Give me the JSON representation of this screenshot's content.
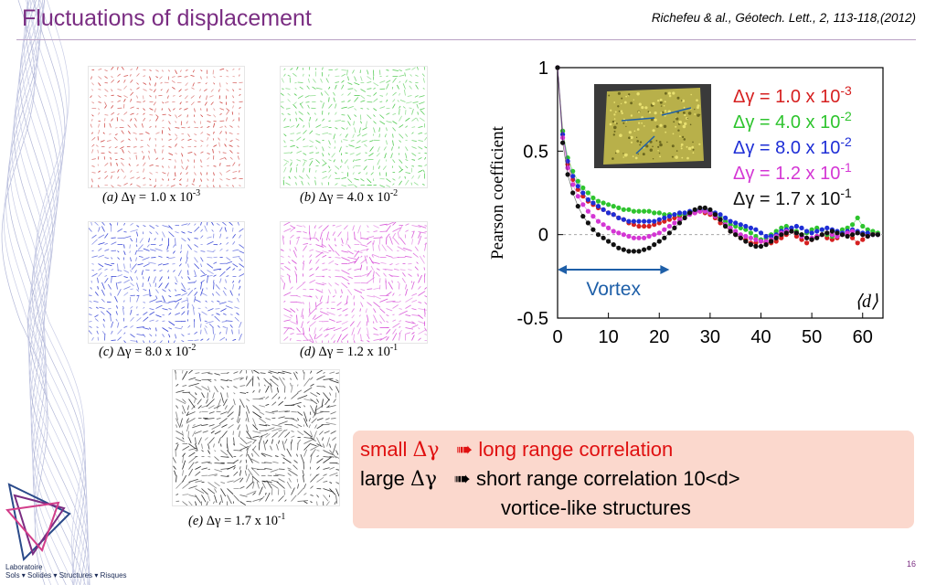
{
  "slide": {
    "title": "Fluctuations of displacement",
    "citation": "Richefeu & al., Géotech. Lett., 2, 113-118,(2012)",
    "page_number": "16",
    "lab_line1": "Laboratoire",
    "lab_line2": "Sols ▾ Solides ▾ Structures ▾ Risques"
  },
  "panels": [
    {
      "label": "(a)",
      "value": "1.0 x 10",
      "exp": "-3",
      "color": "#c9302c"
    },
    {
      "label": "(b)",
      "value": "4.0 x 10",
      "exp": "-2",
      "color": "#3cc43c"
    },
    {
      "label": "(c)",
      "value": "8.0 x 10",
      "exp": "-2",
      "color": "#1f2fd0"
    },
    {
      "label": "(d)",
      "value": "1.2 x 10",
      "exp": "-1",
      "color": "#d23dd2"
    },
    {
      "label": "(e)",
      "value": "1.7 x 10",
      "exp": "-1",
      "color": "#111111"
    }
  ],
  "delta_gamma": "Δγ = ",
  "chart_data": {
    "type": "scatter",
    "ylabel": "Pearson coefficient",
    "xlabel": "⟨d⟩",
    "xlim": [
      0,
      64
    ],
    "ylim": [
      -0.5,
      1
    ],
    "xticks": [
      "0",
      "10",
      "20",
      "30",
      "40",
      "50",
      "60"
    ],
    "yticks": [
      "1",
      "0.5",
      "0",
      "-0.5"
    ],
    "annotation": "Vortex",
    "annotation_range": [
      0,
      22
    ],
    "zero_line": true,
    "legend_position": "top-right",
    "series": [
      {
        "name": "Δγ = 1.0 x 10",
        "exp": "-3",
        "color": "#d62020",
        "x": [
          0,
          1,
          2,
          3,
          4,
          5,
          6,
          7,
          8,
          9,
          10,
          11,
          12,
          13,
          14,
          15,
          16,
          17,
          18,
          19,
          20,
          21,
          22,
          23,
          24,
          25,
          26,
          27,
          28,
          29,
          30,
          31,
          32,
          33,
          34,
          35,
          36,
          37,
          38,
          39,
          40,
          41,
          42,
          43,
          44,
          45,
          46,
          47,
          48,
          49,
          50,
          51,
          52,
          53,
          54,
          55,
          56,
          57,
          58,
          59,
          60,
          61,
          62,
          63
        ],
        "y": [
          1.0,
          0.62,
          0.42,
          0.33,
          0.27,
          0.23,
          0.2,
          0.18,
          0.16,
          0.15,
          0.13,
          0.12,
          0.1,
          0.09,
          0.07,
          0.06,
          0.05,
          0.05,
          0.05,
          0.06,
          0.07,
          0.08,
          0.09,
          0.1,
          0.11,
          0.12,
          0.13,
          0.13,
          0.14,
          0.13,
          0.12,
          0.1,
          0.07,
          0.05,
          0.02,
          0.0,
          -0.02,
          -0.03,
          -0.05,
          -0.05,
          -0.04,
          -0.05,
          -0.05,
          -0.04,
          -0.02,
          0.0,
          0.02,
          -0.01,
          -0.03,
          -0.05,
          -0.03,
          -0.01,
          0.0,
          -0.02,
          -0.03,
          -0.02,
          0.0,
          0.01,
          -0.02,
          -0.05,
          -0.03,
          0.0,
          0.01,
          0.0
        ]
      },
      {
        "name": "Δγ = 4.0 x 10",
        "exp": "-2",
        "color": "#2ec42e",
        "x": [
          0,
          1,
          2,
          3,
          4,
          5,
          6,
          7,
          8,
          9,
          10,
          11,
          12,
          13,
          14,
          15,
          16,
          17,
          18,
          19,
          20,
          21,
          22,
          23,
          24,
          25,
          26,
          27,
          28,
          29,
          30,
          31,
          32,
          33,
          34,
          35,
          36,
          37,
          38,
          39,
          40,
          41,
          42,
          43,
          44,
          45,
          46,
          47,
          48,
          49,
          50,
          51,
          52,
          53,
          54,
          55,
          56,
          57,
          58,
          59,
          60,
          61,
          62,
          63
        ],
        "y": [
          1.0,
          0.62,
          0.46,
          0.38,
          0.32,
          0.28,
          0.25,
          0.22,
          0.2,
          0.19,
          0.18,
          0.17,
          0.16,
          0.15,
          0.15,
          0.14,
          0.14,
          0.14,
          0.14,
          0.13,
          0.13,
          0.12,
          0.12,
          0.12,
          0.12,
          0.12,
          0.13,
          0.14,
          0.15,
          0.14,
          0.13,
          0.12,
          0.1,
          0.08,
          0.06,
          0.05,
          0.04,
          0.03,
          0.01,
          -0.01,
          -0.03,
          -0.02,
          0.0,
          0.02,
          0.04,
          0.05,
          0.04,
          0.02,
          0.0,
          0.01,
          0.03,
          0.04,
          0.03,
          0.0,
          -0.01,
          0.01,
          0.03,
          0.04,
          0.06,
          0.1,
          0.05,
          0.03,
          0.02,
          0.01
        ]
      },
      {
        "name": "Δγ = 8.0 x 10",
        "exp": "-2",
        "color": "#1e2ed6",
        "x": [
          0,
          1,
          2,
          3,
          4,
          5,
          6,
          7,
          8,
          9,
          10,
          11,
          12,
          13,
          14,
          15,
          16,
          17,
          18,
          19,
          20,
          21,
          22,
          23,
          24,
          25,
          26,
          27,
          28,
          29,
          30,
          31,
          32,
          33,
          34,
          35,
          36,
          37,
          38,
          39,
          40,
          41,
          42,
          43,
          44,
          45,
          46,
          47,
          48,
          49,
          50,
          51,
          52,
          53,
          54,
          55,
          56,
          57,
          58,
          59,
          60,
          61,
          62,
          63
        ],
        "y": [
          1.0,
          0.6,
          0.44,
          0.35,
          0.29,
          0.25,
          0.21,
          0.19,
          0.17,
          0.15,
          0.13,
          0.12,
          0.1,
          0.09,
          0.08,
          0.08,
          0.08,
          0.08,
          0.08,
          0.08,
          0.09,
          0.1,
          0.11,
          0.12,
          0.13,
          0.13,
          0.14,
          0.14,
          0.15,
          0.15,
          0.14,
          0.13,
          0.12,
          0.1,
          0.08,
          0.07,
          0.06,
          0.05,
          0.04,
          0.03,
          0.01,
          -0.01,
          -0.01,
          0.0,
          0.02,
          0.03,
          0.04,
          0.05,
          0.04,
          0.02,
          0.01,
          0.02,
          0.03,
          0.04,
          0.03,
          0.02,
          0.01,
          0.02,
          0.03,
          0.02,
          0.01,
          0.01,
          0.0,
          0.0
        ]
      },
      {
        "name": "Δγ = 1.2 x 10",
        "exp": "-1",
        "color": "#d436d4",
        "x": [
          0,
          1,
          2,
          3,
          4,
          5,
          6,
          7,
          8,
          9,
          10,
          11,
          12,
          13,
          14,
          15,
          16,
          17,
          18,
          19,
          20,
          21,
          22,
          23,
          24,
          25,
          26,
          27,
          28,
          29,
          30,
          31,
          32,
          33,
          34,
          35,
          36,
          37,
          38,
          39,
          40,
          41,
          42,
          43,
          44,
          45,
          46,
          47,
          48,
          49,
          50,
          51,
          52,
          53,
          54,
          55,
          56,
          57,
          58,
          59,
          60,
          61,
          62,
          63
        ],
        "y": [
          1.0,
          0.58,
          0.4,
          0.3,
          0.23,
          0.18,
          0.14,
          0.11,
          0.08,
          0.06,
          0.04,
          0.02,
          0.01,
          0.0,
          -0.01,
          -0.02,
          -0.02,
          -0.02,
          -0.01,
          0.0,
          0.01,
          0.03,
          0.05,
          0.07,
          0.09,
          0.1,
          0.12,
          0.13,
          0.14,
          0.14,
          0.13,
          0.11,
          0.09,
          0.06,
          0.04,
          0.02,
          0.0,
          -0.01,
          -0.02,
          -0.03,
          -0.04,
          -0.04,
          -0.03,
          -0.01,
          0.01,
          0.02,
          0.02,
          0.01,
          -0.01,
          -0.02,
          -0.02,
          -0.01,
          0.0,
          0.01,
          0.0,
          -0.01,
          0.0,
          0.01,
          0.02,
          0.01,
          0.0,
          -0.01,
          0.0,
          0.0
        ]
      },
      {
        "name": "Δγ = 1.7 x 10",
        "exp": "-1",
        "color": "#111111",
        "x": [
          0,
          1,
          2,
          3,
          4,
          5,
          6,
          7,
          8,
          9,
          10,
          11,
          12,
          13,
          14,
          15,
          16,
          17,
          18,
          19,
          20,
          21,
          22,
          23,
          24,
          25,
          26,
          27,
          28,
          29,
          30,
          31,
          32,
          33,
          34,
          35,
          36,
          37,
          38,
          39,
          40,
          41,
          42,
          43,
          44,
          45,
          46,
          47,
          48,
          49,
          50,
          51,
          52,
          53,
          54,
          55,
          56,
          57,
          58,
          59,
          60,
          61,
          62,
          63
        ],
        "y": [
          1.0,
          0.55,
          0.36,
          0.25,
          0.17,
          0.11,
          0.07,
          0.03,
          0.0,
          -0.02,
          -0.04,
          -0.06,
          -0.08,
          -0.09,
          -0.1,
          -0.1,
          -0.1,
          -0.09,
          -0.08,
          -0.06,
          -0.04,
          -0.02,
          0.01,
          0.04,
          0.07,
          0.1,
          0.13,
          0.15,
          0.16,
          0.16,
          0.15,
          0.12,
          0.09,
          0.05,
          0.02,
          0.0,
          -0.02,
          -0.04,
          -0.06,
          -0.07,
          -0.07,
          -0.06,
          -0.04,
          -0.02,
          0.0,
          0.01,
          0.02,
          0.01,
          0.0,
          -0.02,
          -0.03,
          -0.02,
          0.0,
          0.01,
          0.02,
          0.01,
          0.0,
          -0.01,
          0.0,
          0.01,
          0.0,
          -0.01,
          0.0,
          0.0
        ]
      }
    ]
  },
  "summary": {
    "line1_a": "small ",
    "line1_b": "Δγ",
    "line1_c": "➠ long range correlation",
    "line2_a": "large ",
    "line2_b": "Δγ",
    "line2_c": "➠ short range correlation 10<d>",
    "line3": "vortice-like structures",
    "highlight_color": "#e01010"
  }
}
